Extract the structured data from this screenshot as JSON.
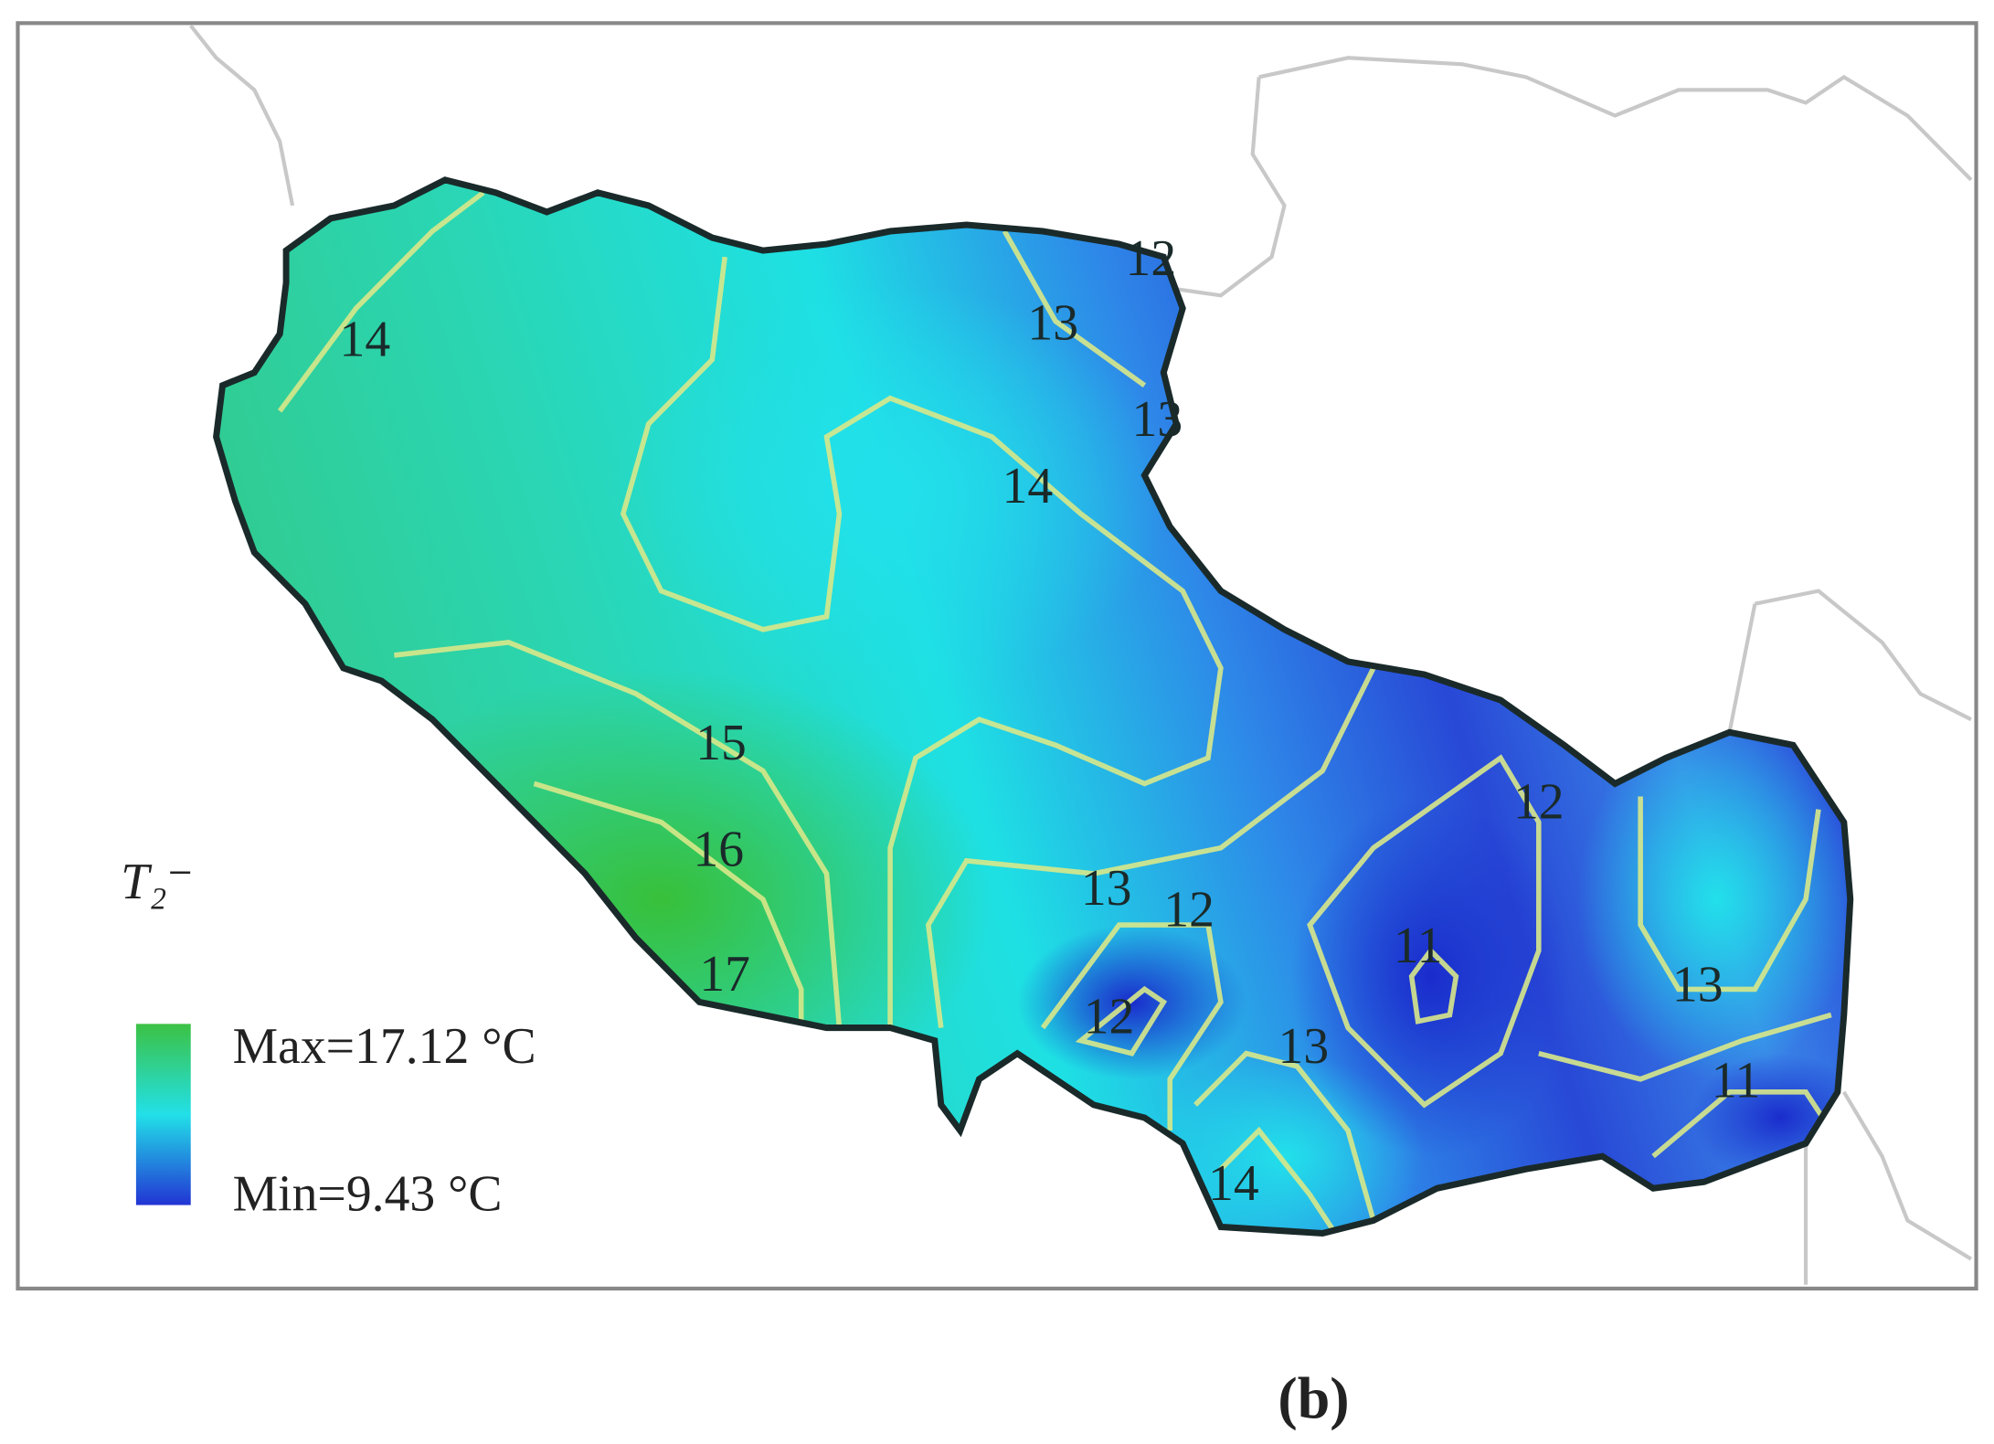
{
  "map": {
    "variable_label": "T₂⁻",
    "legend": {
      "max_label": "Max=17.12 °C",
      "min_label": "Min=9.43 °C"
    },
    "contour_labels": [
      "14",
      "13",
      "12",
      "13",
      "14",
      "15",
      "16",
      "17",
      "13",
      "12",
      "12",
      "11",
      "13",
      "12",
      "13",
      "11",
      "14"
    ]
  },
  "panel_label": "(b)"
}
